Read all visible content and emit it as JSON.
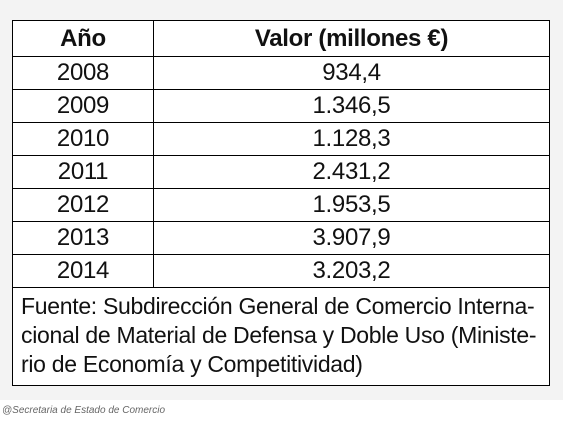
{
  "table": {
    "headers": [
      "Año",
      "Valor (millones €)"
    ],
    "rows": [
      {
        "year": "2008",
        "value": "934,4"
      },
      {
        "year": "2009",
        "value": "1.346,5"
      },
      {
        "year": "2010",
        "value": "1.128,3"
      },
      {
        "year": "2011",
        "value": "2.431,2"
      },
      {
        "year": "2012",
        "value": "1.953,5"
      },
      {
        "year": "2013",
        "value": "3.907,9"
      },
      {
        "year": "2014",
        "value": "3.203,2"
      }
    ],
    "source": {
      "line1": "Fuente: Subdirección General de Comercio Interna-",
      "line2": "cional de Material de Defensa y Doble Uso (Ministe-",
      "line3": "rio de Economía y Competitividad)"
    }
  },
  "caption": "@Secretaria de Estado de Comercio"
}
